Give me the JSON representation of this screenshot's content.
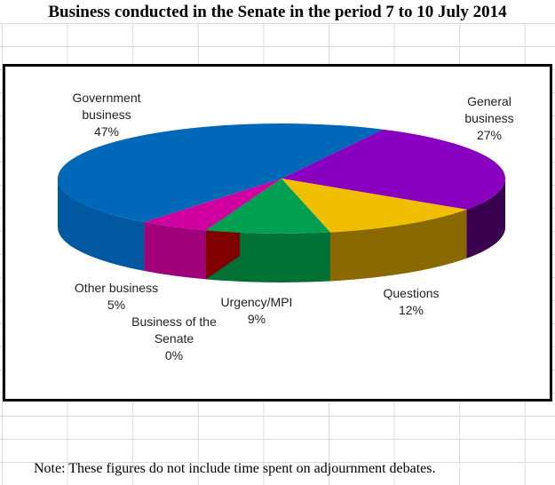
{
  "chart_data": {
    "type": "pie",
    "title": "Business conducted in the Senate in the period 7 to 10 July 2014",
    "note": "Note: These figures do not include time spent on adjournment debates.",
    "slices": [
      {
        "label": "General business",
        "value": 27,
        "pct": "27%",
        "color": "#8a00c0",
        "side": "#3a0050"
      },
      {
        "label": "Questions",
        "value": 12,
        "pct": "12%",
        "color": "#f0c000",
        "side": "#8a6a00"
      },
      {
        "label": "Urgency/MPI",
        "value": 9,
        "pct": "9%",
        "color": "#00a050",
        "side": "#007035"
      },
      {
        "label": "Business of the Senate",
        "value": 0,
        "pct": "0%",
        "color": "#c00000",
        "side": "#800000"
      },
      {
        "label": "Other business",
        "value": 5,
        "pct": "5%",
        "color": "#d000a0",
        "side": "#a0007a"
      },
      {
        "label": "Government business",
        "value": 47,
        "pct": "47%",
        "color": "#0068b8",
        "side": "#0058a0"
      }
    ]
  }
}
